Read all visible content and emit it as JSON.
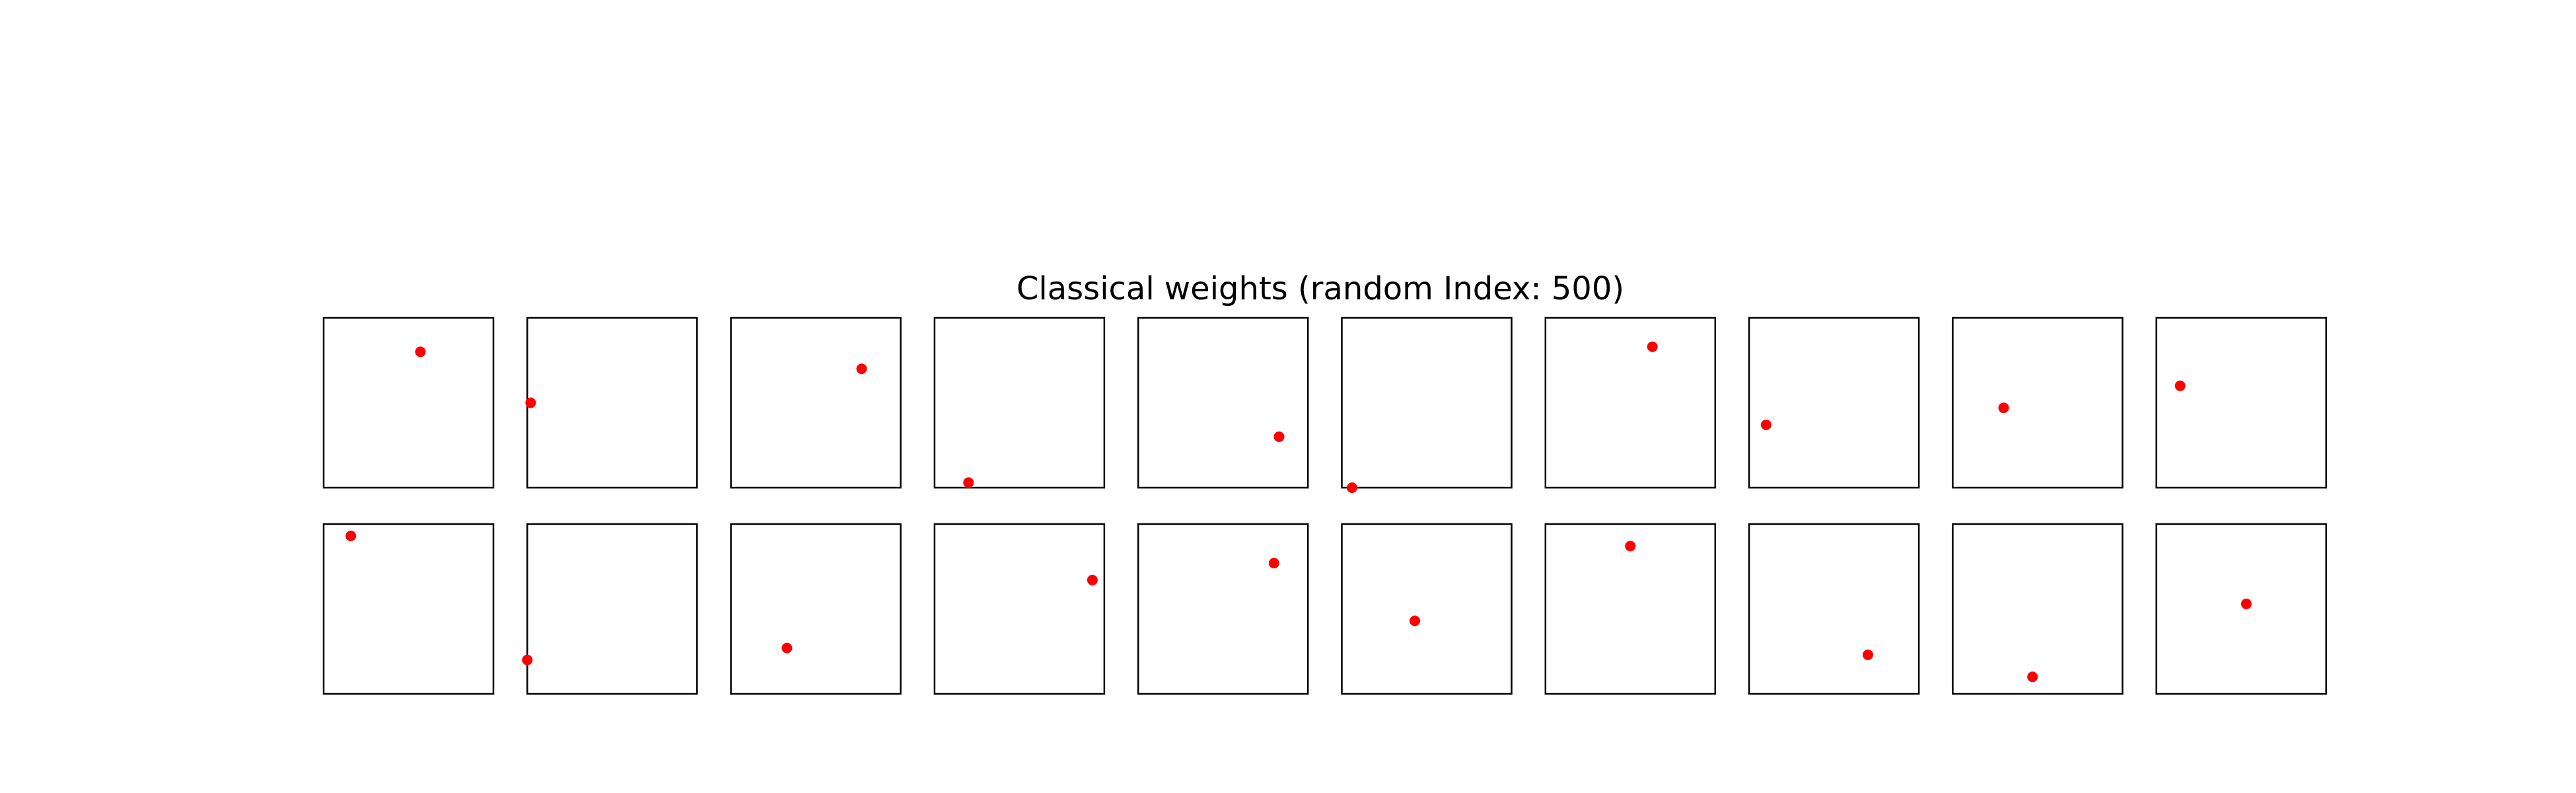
{
  "title": "Classical weights (random Index: 500)",
  "marker_color": "#ff0000",
  "frame_color": "#000000",
  "chart_data": {
    "type": "scatter",
    "title": "Classical weights (random Index: 500)",
    "rows": 2,
    "cols": 10,
    "xlim": [
      0,
      1
    ],
    "ylim": [
      0,
      1
    ],
    "ticks": false,
    "grid": false,
    "legend": "none",
    "panels": [
      {
        "row": 0,
        "col": 0,
        "x": 0.57,
        "y": 0.8
      },
      {
        "row": 0,
        "col": 1,
        "x": 0.02,
        "y": 0.5
      },
      {
        "row": 0,
        "col": 2,
        "x": 0.77,
        "y": 0.7
      },
      {
        "row": 0,
        "col": 3,
        "x": 0.2,
        "y": 0.03
      },
      {
        "row": 0,
        "col": 4,
        "x": 0.83,
        "y": 0.3
      },
      {
        "row": 0,
        "col": 5,
        "x": 0.06,
        "y": 0.0
      },
      {
        "row": 0,
        "col": 6,
        "x": 0.63,
        "y": 0.83
      },
      {
        "row": 0,
        "col": 7,
        "x": 0.1,
        "y": 0.37
      },
      {
        "row": 0,
        "col": 8,
        "x": 0.3,
        "y": 0.47
      },
      {
        "row": 0,
        "col": 9,
        "x": 0.14,
        "y": 0.6
      },
      {
        "row": 1,
        "col": 0,
        "x": 0.16,
        "y": 0.93
      },
      {
        "row": 1,
        "col": 1,
        "x": 0.0,
        "y": 0.2
      },
      {
        "row": 1,
        "col": 2,
        "x": 0.33,
        "y": 0.27
      },
      {
        "row": 1,
        "col": 3,
        "x": 0.93,
        "y": 0.67
      },
      {
        "row": 1,
        "col": 4,
        "x": 0.8,
        "y": 0.77
      },
      {
        "row": 1,
        "col": 5,
        "x": 0.43,
        "y": 0.43
      },
      {
        "row": 1,
        "col": 6,
        "x": 0.5,
        "y": 0.87
      },
      {
        "row": 1,
        "col": 7,
        "x": 0.7,
        "y": 0.23
      },
      {
        "row": 1,
        "col": 8,
        "x": 0.47,
        "y": 0.1
      },
      {
        "row": 1,
        "col": 9,
        "x": 0.53,
        "y": 0.53
      }
    ]
  }
}
